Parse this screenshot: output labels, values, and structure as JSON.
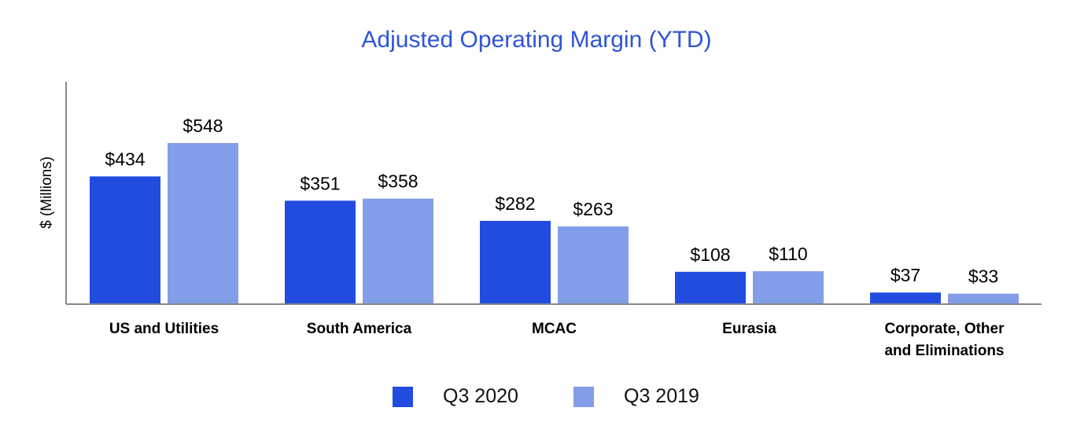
{
  "chart_data": {
    "type": "bar",
    "title": "Adjusted Operating Margin (YTD)",
    "xlabel": "",
    "ylabel": "$ (Millions)",
    "categories": [
      [
        "US and Utilities"
      ],
      [
        "South America"
      ],
      [
        "MCAC"
      ],
      [
        "Eurasia"
      ],
      [
        "Corporate, Other",
        "and Eliminations"
      ]
    ],
    "series": [
      {
        "name": "Q3 2020",
        "color": "#214cdf",
        "values": [
          434,
          351,
          282,
          108,
          37
        ],
        "labels": [
          "$434",
          "$351",
          "$282",
          "$108",
          "$37"
        ]
      },
      {
        "name": "Q3 2019",
        "color": "#839ee9",
        "values": [
          548,
          358,
          263,
          110,
          33
        ],
        "labels": [
          "$548",
          "$358",
          "$263",
          "$110",
          "$33"
        ]
      }
    ],
    "ylim": [
      0,
      760
    ],
    "grid": false,
    "legend": "bottom"
  }
}
